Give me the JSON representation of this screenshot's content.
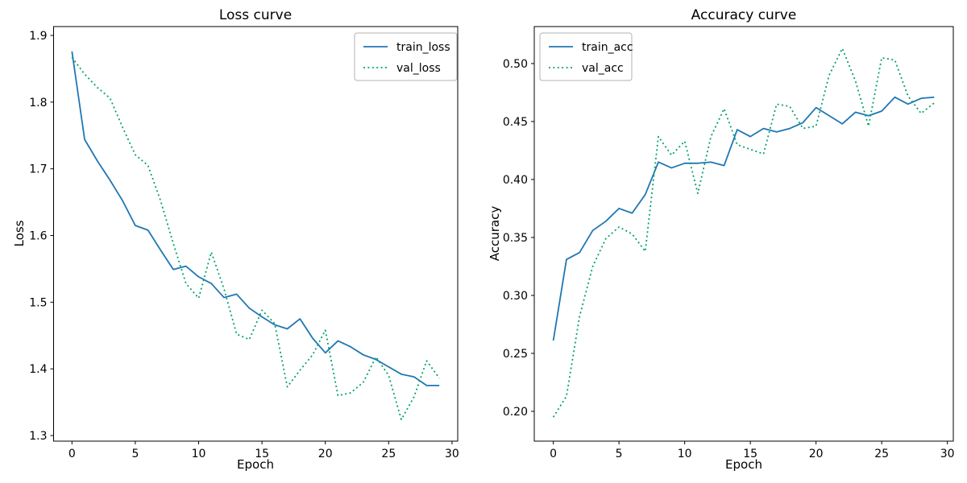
{
  "figure": {
    "background": "#ffffff"
  },
  "colors": {
    "train_line": "#1f77b4",
    "val_line": "#00a36c",
    "text": "#000000",
    "spine": "#000000",
    "legend_border": "#b3b3b3"
  },
  "chart_data": [
    {
      "type": "line",
      "title": "Loss curve",
      "xlabel": "Epoch",
      "ylabel": "Loss",
      "xlim": [
        -1.45,
        30.45
      ],
      "ylim": [
        1.2916,
        1.9133
      ],
      "grid": false,
      "legend_position": "upper-right",
      "xticks": {
        "values": [
          0,
          5,
          10,
          15,
          20,
          25,
          30
        ],
        "labels": [
          "0",
          "5",
          "10",
          "15",
          "20",
          "25",
          "30"
        ]
      },
      "yticks": {
        "values": [
          1.3,
          1.4,
          1.5,
          1.6,
          1.7,
          1.8,
          1.9
        ],
        "labels": [
          "1.3",
          "1.4",
          "1.5",
          "1.6",
          "1.7",
          "1.8",
          "1.9"
        ]
      },
      "x": [
        0,
        1,
        2,
        3,
        4,
        5,
        6,
        7,
        8,
        9,
        10,
        11,
        12,
        13,
        14,
        15,
        16,
        17,
        18,
        19,
        20,
        21,
        22,
        23,
        24,
        25,
        26,
        27,
        28,
        29
      ],
      "series": [
        {
          "name": "train_loss",
          "style": "solid",
          "color": "#1f77b4",
          "values": [
            1.876,
            1.744,
            1.712,
            1.683,
            1.652,
            1.615,
            1.608,
            1.578,
            1.549,
            1.554,
            1.538,
            1.528,
            1.507,
            1.512,
            1.491,
            1.478,
            1.466,
            1.46,
            1.475,
            1.446,
            1.424,
            1.442,
            1.433,
            1.421,
            1.414,
            1.403,
            1.392,
            1.388,
            1.375,
            1.375
          ]
        },
        {
          "name": "val_loss",
          "style": "dotted",
          "color": "#00a36c",
          "values": [
            1.867,
            1.842,
            1.822,
            1.806,
            1.762,
            1.721,
            1.705,
            1.652,
            1.588,
            1.528,
            1.506,
            1.575,
            1.52,
            1.452,
            1.444,
            1.488,
            1.468,
            1.373,
            1.398,
            1.421,
            1.458,
            1.36,
            1.364,
            1.38,
            1.418,
            1.39,
            1.324,
            1.358,
            1.412,
            1.386
          ]
        }
      ]
    },
    {
      "type": "line",
      "title": "Accuracy curve",
      "xlabel": "Epoch",
      "ylabel": "Accuracy",
      "xlim": [
        -1.45,
        30.45
      ],
      "ylim": [
        0.1743,
        0.5319
      ],
      "grid": false,
      "legend_position": "upper-left",
      "xticks": {
        "values": [
          0,
          5,
          10,
          15,
          20,
          25,
          30
        ],
        "labels": [
          "0",
          "5",
          "10",
          "15",
          "20",
          "25",
          "30"
        ]
      },
      "yticks": {
        "values": [
          0.2,
          0.25,
          0.3,
          0.35,
          0.4,
          0.45,
          0.5
        ],
        "labels": [
          "0.20",
          "0.25",
          "0.30",
          "0.35",
          "0.40",
          "0.45",
          "0.50"
        ]
      },
      "x": [
        0,
        1,
        2,
        3,
        4,
        5,
        6,
        7,
        8,
        9,
        10,
        11,
        12,
        13,
        14,
        15,
        16,
        17,
        18,
        19,
        20,
        21,
        22,
        23,
        24,
        25,
        26,
        27,
        28,
        29
      ],
      "series": [
        {
          "name": "train_acc",
          "style": "solid",
          "color": "#1f77b4",
          "values": [
            0.261,
            0.331,
            0.337,
            0.356,
            0.364,
            0.375,
            0.371,
            0.387,
            0.415,
            0.41,
            0.414,
            0.414,
            0.415,
            0.412,
            0.443,
            0.437,
            0.444,
            0.441,
            0.444,
            0.449,
            0.462,
            0.455,
            0.448,
            0.458,
            0.455,
            0.459,
            0.471,
            0.465,
            0.47,
            0.471
          ]
        },
        {
          "name": "val_acc",
          "style": "dotted",
          "color": "#00a36c",
          "values": [
            0.195,
            0.213,
            0.282,
            0.325,
            0.349,
            0.359,
            0.353,
            0.338,
            0.437,
            0.421,
            0.433,
            0.388,
            0.437,
            0.461,
            0.43,
            0.426,
            0.422,
            0.465,
            0.463,
            0.444,
            0.446,
            0.49,
            0.513,
            0.485,
            0.446,
            0.505,
            0.503,
            0.472,
            0.457,
            0.466
          ]
        }
      ]
    }
  ]
}
